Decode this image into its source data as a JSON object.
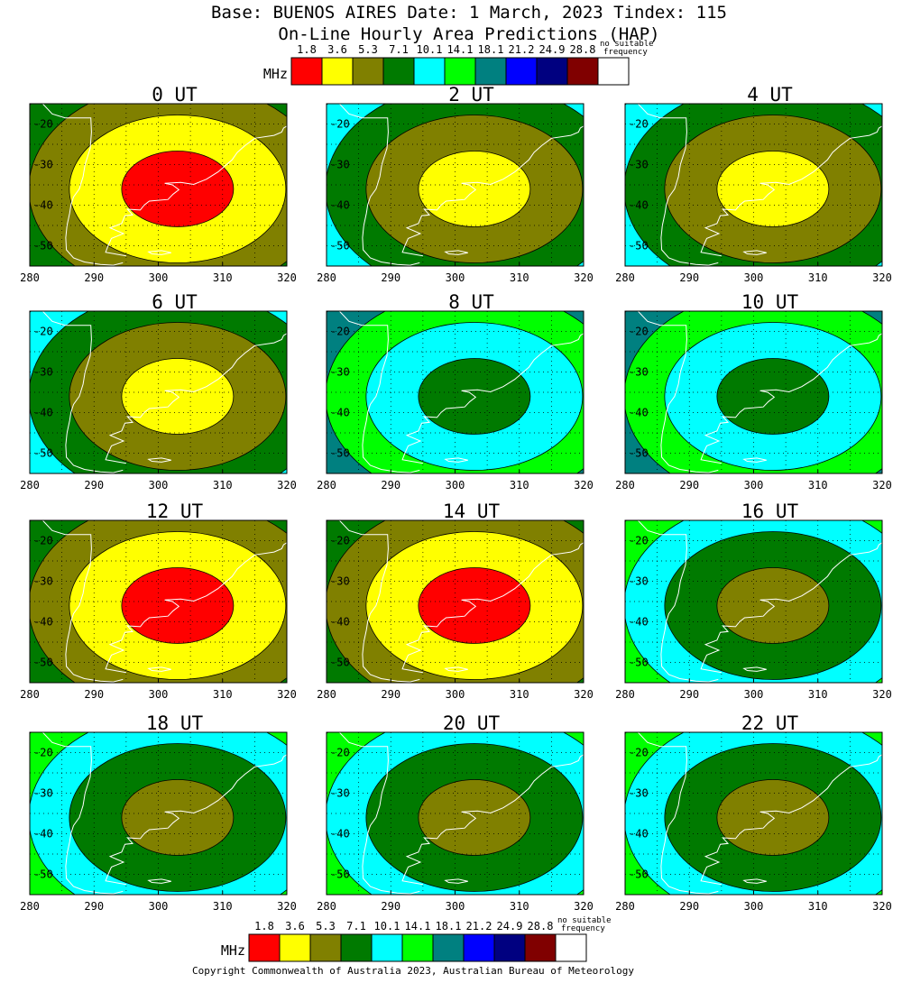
{
  "header": {
    "title": "Base: BUENOS AIRES Date: 1 March, 2023 Tindex: 115",
    "subtitle": "On-Line Hourly Area Predictions (HAP)"
  },
  "legend": {
    "unit": "MHz",
    "entries": [
      {
        "label": "1.8",
        "color": "#ff0000"
      },
      {
        "label": "3.6",
        "color": "#ffff00"
      },
      {
        "label": "5.3",
        "color": "#808000"
      },
      {
        "label": "7.1",
        "color": "#007a00"
      },
      {
        "label": "10.1",
        "color": "#00ffff"
      },
      {
        "label": "14.1",
        "color": "#00ff00"
      },
      {
        "label": "18.1",
        "color": "#008080"
      },
      {
        "label": "21.2",
        "color": "#0000ff"
      },
      {
        "label": "24.9",
        "color": "#000080"
      },
      {
        "label": "28.8",
        "color": "#800000"
      },
      {
        "label": "",
        "color": "#ffffff"
      }
    ],
    "no_suitable_line1": "no suitable",
    "no_suitable_line2": "frequency"
  },
  "axes": {
    "x_ticks": [
      "280",
      "290",
      "300",
      "310",
      "320"
    ],
    "y_ticks": [
      "-20",
      "-30",
      "-40",
      "-50"
    ],
    "lon_range": [
      280,
      320
    ],
    "lat_range": [
      -55,
      -15
    ]
  },
  "panels": [
    {
      "title": "0 UT",
      "level": 0
    },
    {
      "title": "2 UT",
      "level": 1
    },
    {
      "title": "4 UT",
      "level": 1
    },
    {
      "title": "6 UT",
      "level": 1
    },
    {
      "title": "8 UT",
      "level": 3
    },
    {
      "title": "10 UT",
      "level": 3
    },
    {
      "title": "12 UT",
      "level": 0
    },
    {
      "title": "14 UT",
      "level": 0
    },
    {
      "title": "16 UT",
      "level": 2
    },
    {
      "title": "18 UT",
      "level": 2
    },
    {
      "title": "20 UT",
      "level": 2
    },
    {
      "title": "22 UT",
      "level": 2
    }
  ],
  "copyright": "Copyright Commonwealth of Australia 2023, Australian Bureau of Meteorology"
}
